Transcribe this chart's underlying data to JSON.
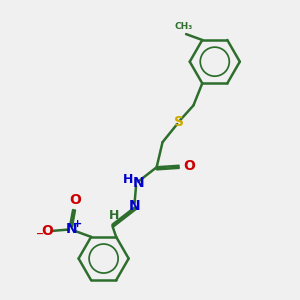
{
  "bg_color": "#f0f0f0",
  "bond_color": "#2d6e2d",
  "bond_width": 1.8,
  "S_color": "#ccaa00",
  "N_color": "#0000cc",
  "O_color": "#cc0000",
  "text_color": "#2d6e2d",
  "figsize": [
    3.0,
    3.0
  ],
  "dpi": 100,
  "xlim": [
    0,
    10
  ],
  "ylim": [
    0,
    10
  ]
}
